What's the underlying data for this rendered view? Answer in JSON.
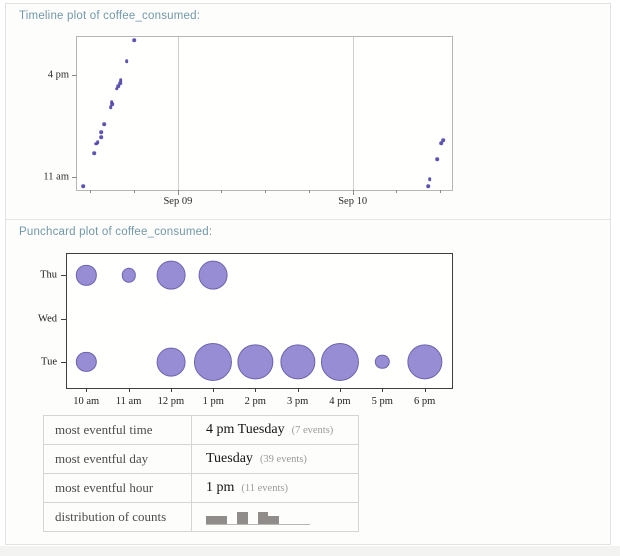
{
  "page": {
    "section1_title": "Timeline plot of coffee_consumed:",
    "section2_title": "Punchcard plot of coffee_consumed:"
  },
  "colors": {
    "header_text": "#7298a8",
    "timeline_point": "#4f46a8",
    "bubble_fill": "#978dd5",
    "bubble_stroke": "#6e64ad",
    "spark_bar": "#908c89"
  },
  "chart_data": [
    {
      "type": "scatter",
      "title": "Timeline plot of coffee_consumed",
      "x_axis": {
        "labels": [
          "Sep 09",
          "Sep 10"
        ],
        "label_pct": [
          26.9,
          73.5
        ],
        "tick_pct": [
          3.5,
          15.2,
          26.9,
          38.5,
          50.2,
          61.9,
          73.5,
          85.2,
          96.9
        ],
        "gridline_pct": [
          26.9,
          73.5
        ]
      },
      "y_axis": {
        "labels": [
          "4 pm",
          "11 am"
        ],
        "label_pct": [
          24.8,
          91.5
        ]
      },
      "points": [
        {
          "date": "Sep 08",
          "time": "10:32 am",
          "x": 1.6,
          "y": 97.6
        },
        {
          "date": "Sep 08",
          "time": "12:10 pm",
          "x": 4.6,
          "y": 75.8
        },
        {
          "date": "Sep 08",
          "time": "12:38 pm",
          "x": 5.2,
          "y": 69.7
        },
        {
          "date": "Sep 08",
          "time": "12:43 pm",
          "x": 5.5,
          "y": 68.6
        },
        {
          "date": "Sep 08",
          "time": "12:57 pm",
          "x": 6.5,
          "y": 65.4
        },
        {
          "date": "Sep 08",
          "time": "1:12 pm",
          "x": 6.4,
          "y": 62.1
        },
        {
          "date": "Sep 08",
          "time": "1:35 pm",
          "x": 7.3,
          "y": 57.1
        },
        {
          "date": "Sep 08",
          "time": "2:25 pm",
          "x": 9.0,
          "y": 45.8
        },
        {
          "date": "Sep 08",
          "time": "2:32 pm",
          "x": 9.4,
          "y": 43.9
        },
        {
          "date": "Sep 08",
          "time": "2:40 pm",
          "x": 9.2,
          "y": 42.5
        },
        {
          "date": "Sep 08",
          "time": "3:19 pm",
          "x": 10.6,
          "y": 33.8
        },
        {
          "date": "Sep 08",
          "time": "3:26 pm",
          "x": 11.0,
          "y": 32.2
        },
        {
          "date": "Sep 08",
          "time": "3:36 pm",
          "x": 11.5,
          "y": 30.1
        },
        {
          "date": "Sep 08",
          "time": "3:44 pm",
          "x": 11.7,
          "y": 28.3
        },
        {
          "date": "Sep 08",
          "time": "4:40 pm",
          "x": 13.3,
          "y": 15.9
        },
        {
          "date": "Sep 08",
          "time": "5:42 pm",
          "x": 15.3,
          "y": 2.2
        },
        {
          "date": "Sep 10",
          "time": "10:33 am",
          "x": 93.6,
          "y": 97.4
        },
        {
          "date": "Sep 10",
          "time": "10:54 am",
          "x": 94.1,
          "y": 92.8
        },
        {
          "date": "Sep 10",
          "time": "11:53 am",
          "x": 96.0,
          "y": 79.7
        },
        {
          "date": "Sep 10",
          "time": "12:36 pm",
          "x": 97.1,
          "y": 69.5
        },
        {
          "date": "Sep 10",
          "time": "12:45 pm",
          "x": 97.6,
          "y": 67.5
        }
      ]
    },
    {
      "type": "bubble",
      "title": "Punchcard plot of coffee_consumed",
      "days": [
        "Thu",
        "Wed",
        "Tue"
      ],
      "day_pct": [
        15.9,
        48.7,
        80.6
      ],
      "hours": [
        "10 am",
        "11 am",
        "12 pm",
        "1 pm",
        "2 pm",
        "3 pm",
        "4 pm",
        "5 pm",
        "6 pm"
      ],
      "hour_pct": [
        5.0,
        16.0,
        27.0,
        38.0,
        48.9,
        59.9,
        70.9,
        81.9,
        92.9
      ],
      "radius_scale": 7.2,
      "bubbles": [
        {
          "day": "Thu",
          "hour": "10 am",
          "count": 2
        },
        {
          "day": "Thu",
          "hour": "11 am",
          "count": 1
        },
        {
          "day": "Thu",
          "hour": "12 pm",
          "count": 4
        },
        {
          "day": "Thu",
          "hour": "1 pm",
          "count": 4
        },
        {
          "day": "Tue",
          "hour": "10 am",
          "count": 2
        },
        {
          "day": "Tue",
          "hour": "12 pm",
          "count": 4
        },
        {
          "day": "Tue",
          "hour": "1 pm",
          "count": 7
        },
        {
          "day": "Tue",
          "hour": "2 pm",
          "count": 6
        },
        {
          "day": "Tue",
          "hour": "3 pm",
          "count": 6
        },
        {
          "day": "Tue",
          "hour": "4 pm",
          "count": 7
        },
        {
          "day": "Tue",
          "hour": "5 pm",
          "count": 1
        },
        {
          "day": "Tue",
          "hour": "6 pm",
          "count": 6
        }
      ]
    }
  ],
  "table": {
    "rows": [
      {
        "label": "most eventful time",
        "value": "4 pm Tuesday",
        "note": "(7 events)"
      },
      {
        "label": "most eventful day",
        "value": "Tuesday",
        "note": "(39 events)"
      },
      {
        "label": "most eventful hour",
        "value": "1 pm",
        "note": "(11 events)"
      },
      {
        "label": "distribution of counts",
        "sparkline_bins": [
          2,
          2,
          0,
          3,
          0,
          3,
          2,
          0,
          0,
          0
        ]
      }
    ]
  }
}
